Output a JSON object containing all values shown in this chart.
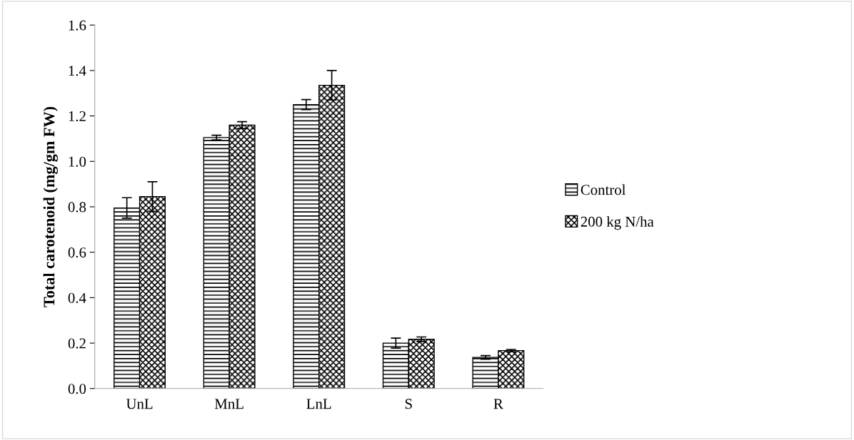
{
  "chart_data": {
    "type": "bar",
    "ylabel": "Total carotenoid (mg/gm FW)",
    "categories": [
      "UnL",
      "MnL",
      "LnL",
      "S",
      "R"
    ],
    "series": [
      {
        "name": "Control",
        "color": "#000000",
        "values": [
          0.795,
          1.105,
          1.25,
          0.2,
          0.137
        ],
        "errors": [
          0.045,
          0.01,
          0.022,
          0.022,
          0.008
        ]
      },
      {
        "name": "200 kg N/ha",
        "color": "#000000",
        "values": [
          0.845,
          1.16,
          1.335,
          0.217,
          0.167
        ],
        "errors": [
          0.065,
          0.015,
          0.065,
          0.01,
          0.005
        ]
      }
    ],
    "ylim": [
      0,
      1.6
    ],
    "yticks": [
      {
        "value": 0,
        "label": "0.0"
      },
      {
        "value": 0.2,
        "label": "0.2"
      },
      {
        "value": 0.4,
        "label": "0.4"
      },
      {
        "value": 0.6,
        "label": "0.6"
      },
      {
        "value": 0.8,
        "label": "0.8"
      },
      {
        "value": 1.0,
        "label": "1.0"
      },
      {
        "value": 1.2,
        "label": "1.2"
      },
      {
        "value": 1.4,
        "label": "1.4"
      },
      {
        "value": 1.6,
        "label": "1.6"
      }
    ],
    "grid": false,
    "legend": "right"
  }
}
